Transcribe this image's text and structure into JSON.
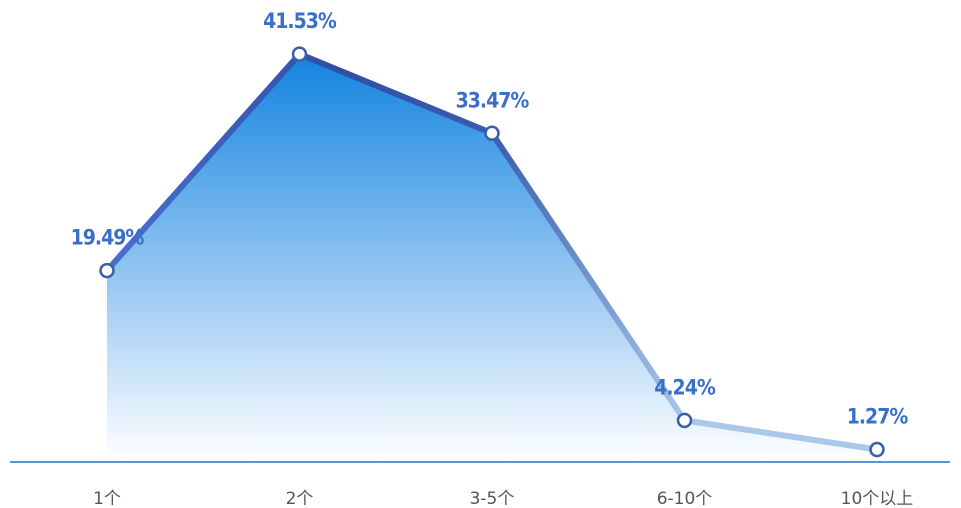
{
  "chart_data": {
    "type": "area",
    "categories": [
      "1个",
      "2个",
      "3-5个",
      "6-10个",
      "10个以上"
    ],
    "values": [
      19.49,
      41.53,
      33.47,
      4.24,
      1.27
    ],
    "data_labels": [
      "19.49%",
      "41.53%",
      "33.47%",
      "4.24%",
      "1.27%"
    ],
    "ylim": [
      0,
      45
    ],
    "grid": false,
    "colors": {
      "line_start": "#4a6fcf",
      "line_peak": "#2f4fa6",
      "line_end": "#a9c8ea",
      "fill_top": "#1283e0",
      "fill_bottom": "#ffffff",
      "baseline": "#5b95d6",
      "label": "#3a6fc8",
      "tick": "#555555",
      "marker_stroke": "#3d5ea8",
      "marker_fill": "#ffffff"
    }
  }
}
